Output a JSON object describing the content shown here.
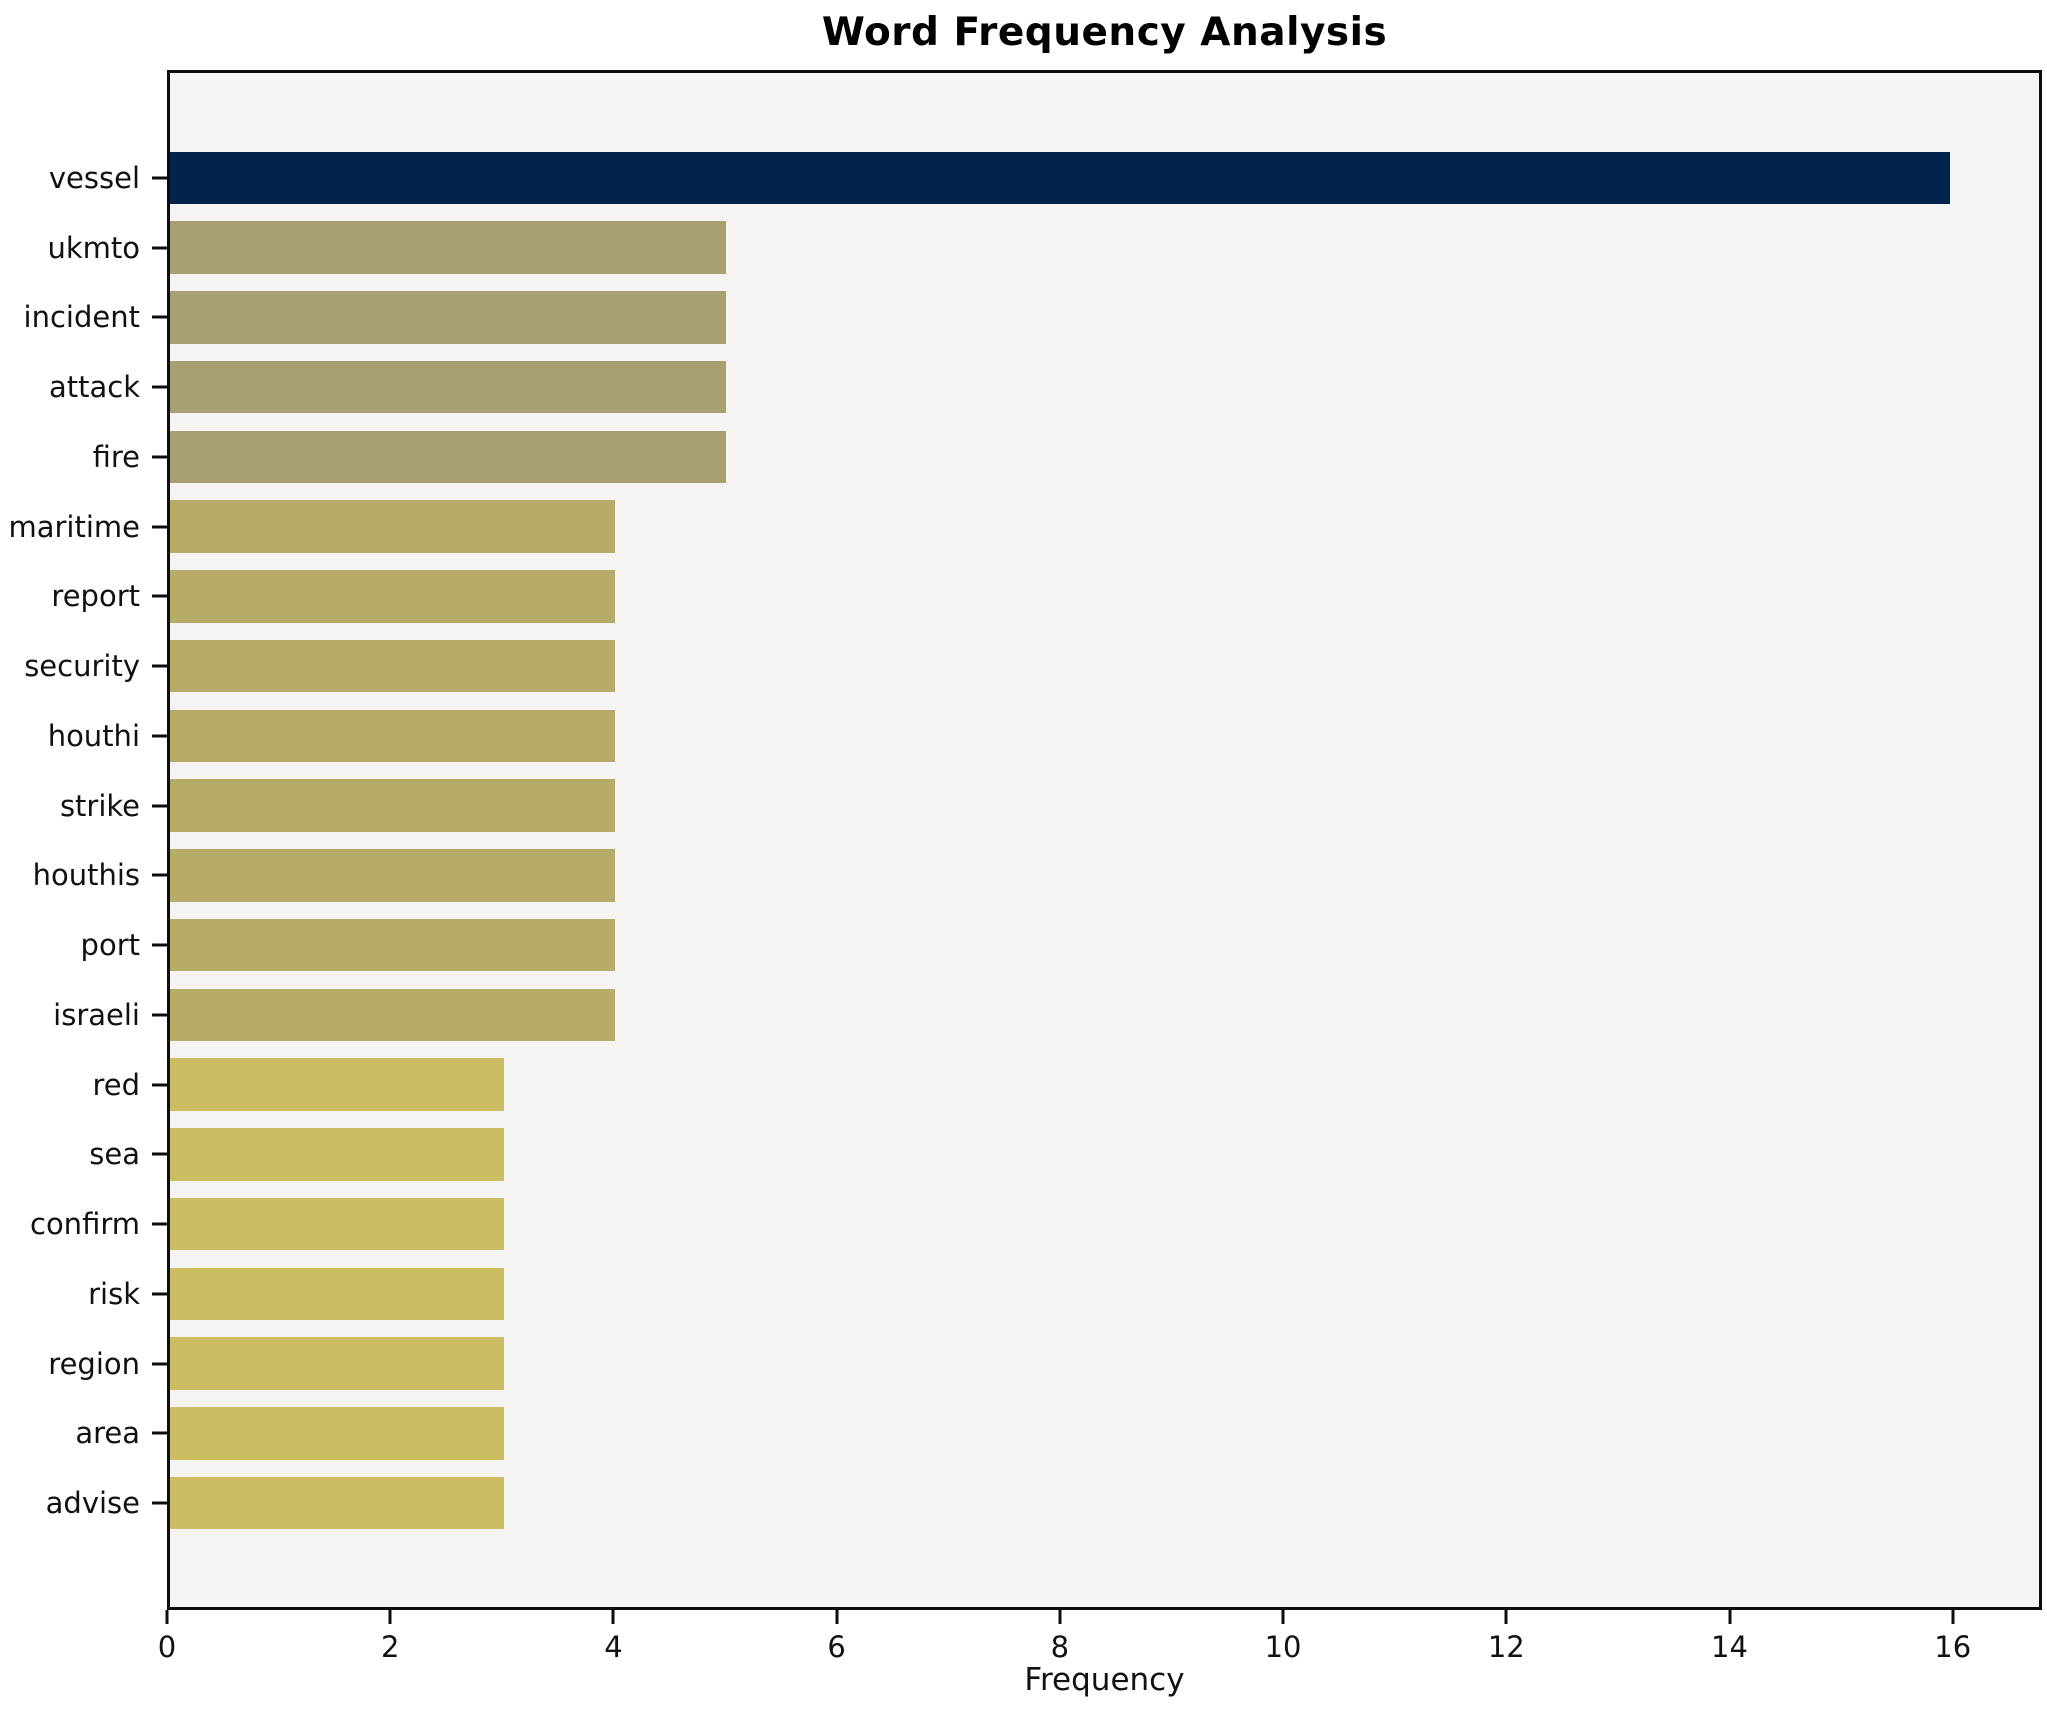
{
  "chart_data": {
    "type": "bar",
    "orientation": "horizontal",
    "title": "Word Frequency Analysis",
    "xlabel": "Frequency",
    "ylabel": "",
    "categories": [
      "vessel",
      "ukmto",
      "incident",
      "attack",
      "fire",
      "maritime",
      "report",
      "security",
      "houthi",
      "strike",
      "houthis",
      "port",
      "israeli",
      "red",
      "sea",
      "confirm",
      "risk",
      "region",
      "area",
      "advise"
    ],
    "values": [
      16,
      5,
      5,
      5,
      5,
      4,
      4,
      4,
      4,
      4,
      4,
      4,
      4,
      3,
      3,
      3,
      3,
      3,
      3,
      3
    ],
    "bar_colors": [
      "#02234b",
      "#a89f73",
      "#a89f73",
      "#a89f73",
      "#a89f73",
      "#b7ab69",
      "#b7ab69",
      "#b7ab69",
      "#b7ab69",
      "#b7ab69",
      "#b7ab69",
      "#b7ab69",
      "#b7ab69",
      "#ccbc62",
      "#ccbc62",
      "#ccbc62",
      "#ccbc62",
      "#ccbc62",
      "#ccbc62",
      "#ccbc62"
    ],
    "xlim": [
      0,
      16.8
    ],
    "xticks": [
      0,
      2,
      4,
      6,
      8,
      10,
      12,
      14,
      16
    ],
    "grid": false,
    "legend": null,
    "plot_background": "#f5f4f2",
    "figure_background": "#ffffff",
    "axis_color": "#0d0d0d"
  }
}
